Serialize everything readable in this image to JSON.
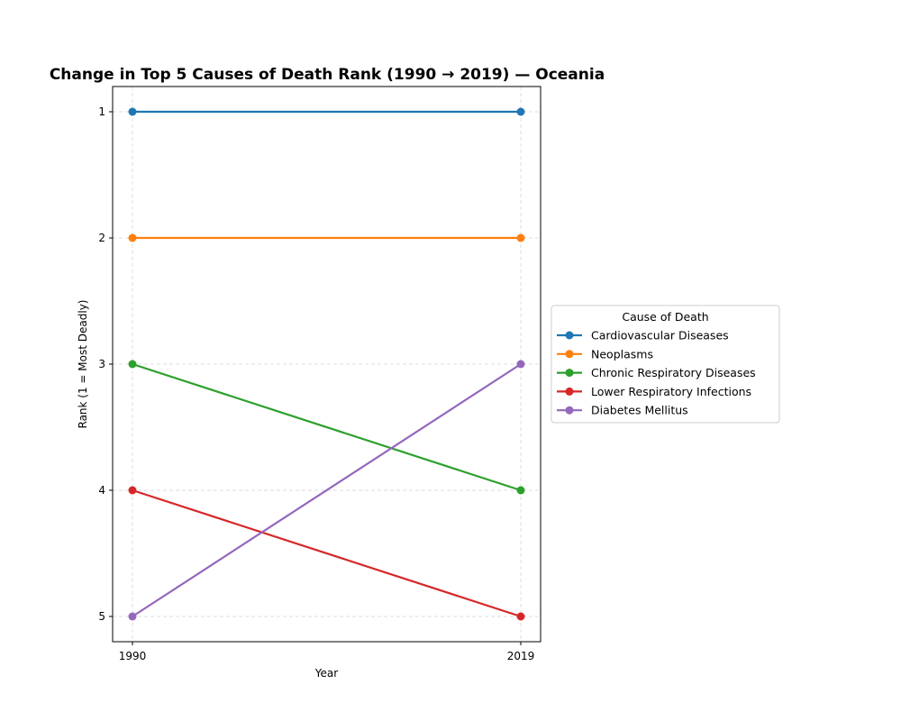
{
  "chart_data": {
    "type": "line",
    "title": "Change in Top 5 Causes of Death Rank (1990 → 2019) — Oceania",
    "xlabel": "Year",
    "ylabel": "Rank (1 = Most Deadly)",
    "x": [
      "1990",
      "2019"
    ],
    "yticks": [
      "1",
      "2",
      "3",
      "4",
      "5"
    ],
    "y_inverted": true,
    "ylim": [
      5.2,
      0.8
    ],
    "grid": true,
    "legend": {
      "title": "Cause of Death",
      "placement": "right, outside"
    },
    "series": [
      {
        "name": "Cardiovascular Diseases",
        "values": [
          1,
          1
        ],
        "color": "#1f77b4"
      },
      {
        "name": "Neoplasms",
        "values": [
          2,
          2
        ],
        "color": "#ff7f0e"
      },
      {
        "name": "Chronic Respiratory Diseases",
        "values": [
          3,
          4
        ],
        "color": "#2ca02c"
      },
      {
        "name": "Lower Respiratory Infections",
        "values": [
          4,
          5
        ],
        "color": "#d62728"
      },
      {
        "name": "Diabetes Mellitus",
        "values": [
          5,
          3
        ],
        "color": "#9467bd"
      }
    ]
  }
}
